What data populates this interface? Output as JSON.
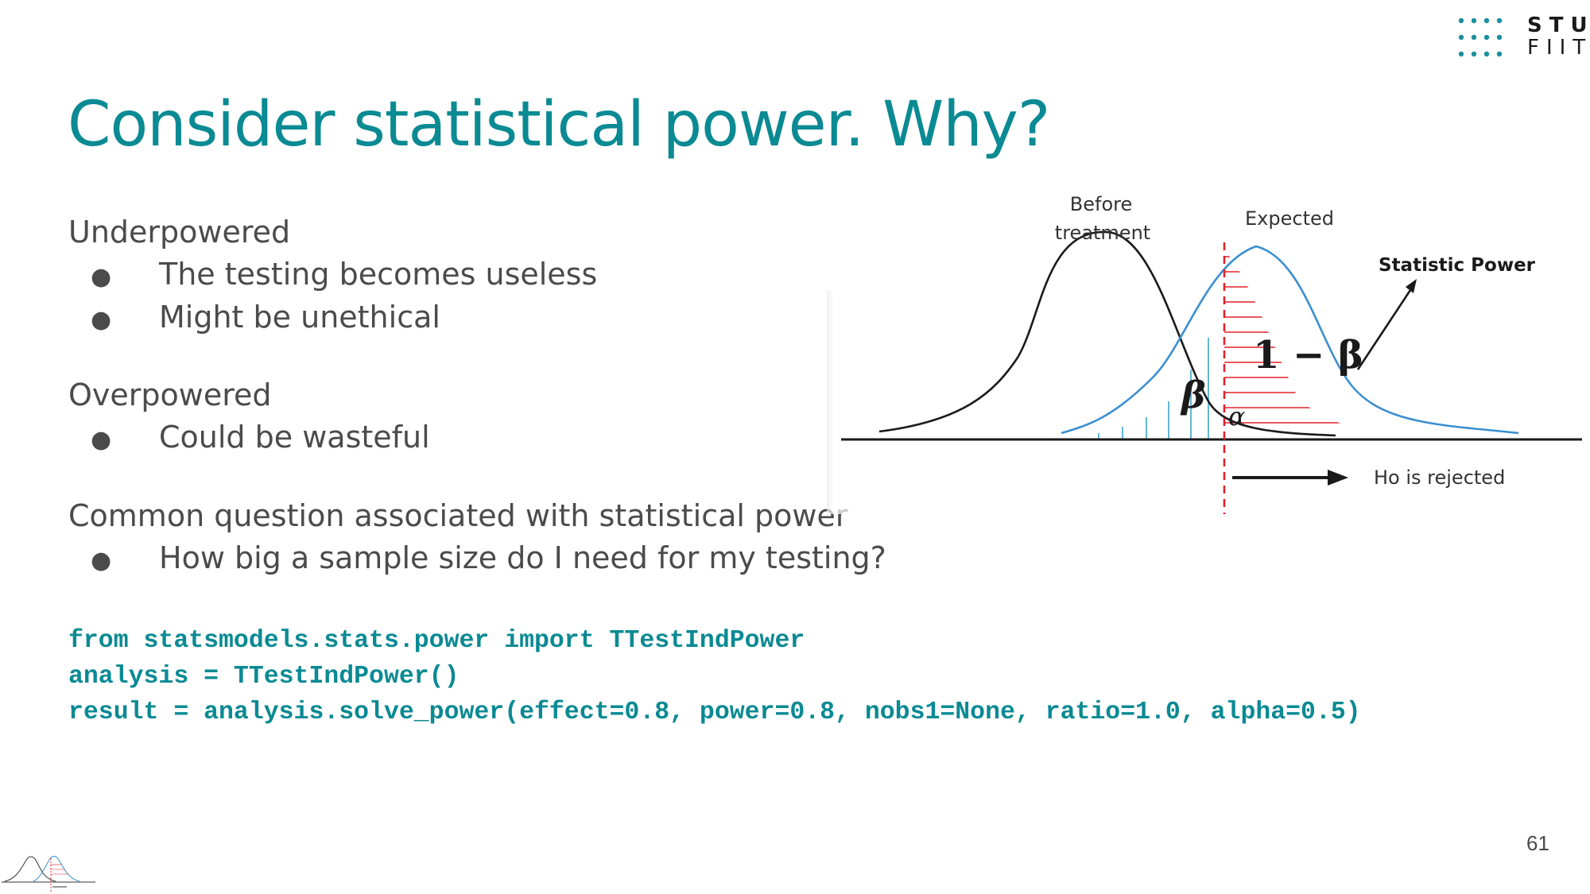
{
  "logo": {
    "line1": "STU",
    "line2": "FIIT",
    "dot_color": "#1a8fa0"
  },
  "title": "Consider statistical power. Why?",
  "sections": [
    {
      "heading": "Underpowered",
      "bullets": [
        "The testing becomes useless",
        "Might be unethical"
      ]
    },
    {
      "heading": "Overpowered",
      "bullets": [
        "Could be wasteful"
      ]
    },
    {
      "heading": "Common question associated with statistical power",
      "bullets": [
        "How big a sample size do I need for my testing?"
      ]
    }
  ],
  "bullet_glyph": "●",
  "code": {
    "line1": "from statsmodels.stats.power import TTestIndPower",
    "line2": "analysis = TTestIndPower()",
    "line3": "result = analysis.solve_power(effect=0.8, power=0.8, nobs1=None, ratio=1.0, alpha=0.5)"
  },
  "figure": {
    "label_before_line1": "Before",
    "label_before_line2": "treatment",
    "label_expected": "Expected",
    "label_power": "Statistic Power",
    "label_one_minus_beta": "1 − β",
    "label_beta": "β",
    "label_alpha": "α",
    "label_rejected": "Ho is rejected",
    "colors": {
      "before_curve": "#1a1a1a",
      "expected_curve": "#3a8fd0",
      "power_hatch": "#e0202a",
      "beta_hatch": "#3aa7c8",
      "threshold": "#e0202a"
    }
  },
  "page_number": "61",
  "accent_color": "#0a8a93"
}
